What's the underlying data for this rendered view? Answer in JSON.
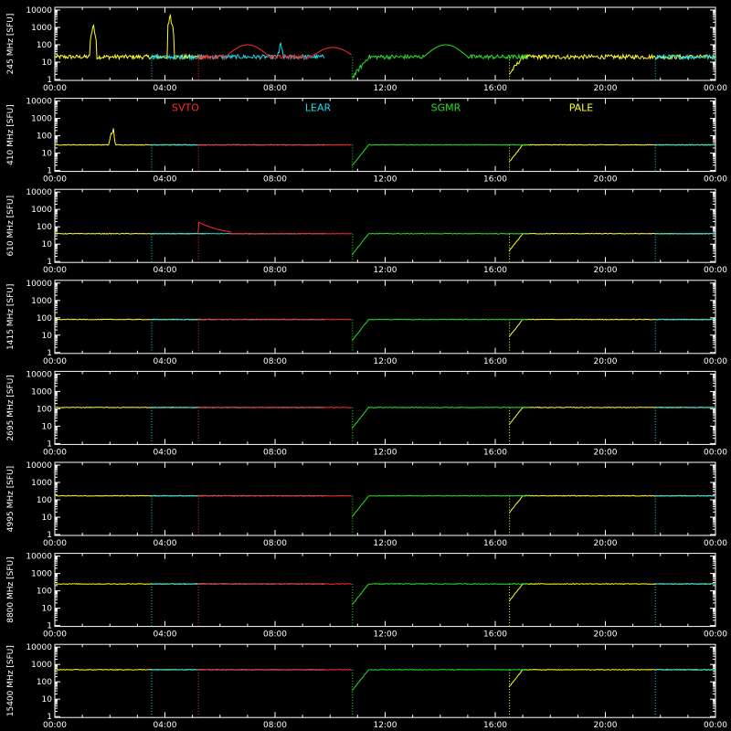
{
  "colors": {
    "background": "#000000",
    "axes": "#ffffff",
    "SVTO": "#ff2a2a",
    "LEAR": "#20d8ea",
    "SGMR": "#28e028",
    "PALE": "#ffff22"
  },
  "chart_data": {
    "type": "line",
    "layout_note": "8 stacked panels sharing the time axis",
    "x_tick_labels": [
      "00:00",
      "04:00",
      "08:00",
      "12:00",
      "16:00",
      "20:00",
      "00:00"
    ],
    "y_tick_labels": [
      "1",
      "10",
      "100",
      "1000",
      "10000"
    ],
    "y_scale": "log",
    "ylim": [
      1,
      10000
    ],
    "x_range_hours": [
      0,
      24
    ],
    "legend": {
      "placement": "top of panel 2",
      "entries": [
        {
          "name": "SVTO",
          "color": "#ff2a2a"
        },
        {
          "name": "LEAR",
          "color": "#20d8ea"
        },
        {
          "name": "SGMR",
          "color": "#28e028"
        },
        {
          "name": "PALE",
          "color": "#ffff22"
        }
      ]
    },
    "station_coverage_hours": {
      "PALE": [
        [
          0,
          5.5
        ],
        [
          16.5,
          24
        ]
      ],
      "LEAR": [
        [
          3.5,
          9.8
        ],
        [
          21.8,
          24
        ]
      ],
      "SVTO": [
        [
          5.2,
          10.8
        ]
      ],
      "SGMR": [
        [
          10.8,
          17.2
        ]
      ]
    },
    "panels": [
      {
        "ylabel": "245 MHz [SFU]",
        "baseline_sfu": 20,
        "events": [
          {
            "station": "PALE",
            "time_h": 1.4,
            "peak_sfu": 2000,
            "shape": "spike"
          },
          {
            "station": "PALE",
            "time_h": 4.2,
            "peak_sfu": 8000,
            "shape": "spike"
          },
          {
            "station": "SVTO",
            "time_h": 7.0,
            "peak_sfu": 100,
            "shape": "arc"
          },
          {
            "station": "SVTO",
            "time_h": 10.1,
            "peak_sfu": 70,
            "shape": "arc"
          },
          {
            "station": "SGMR",
            "time_h": 14.2,
            "peak_sfu": 100,
            "shape": "arc"
          },
          {
            "station": "LEAR",
            "time_h": 8.2,
            "peak_sfu": 200,
            "shape": "spike"
          }
        ]
      },
      {
        "ylabel": "410 MHz [SFU]",
        "baseline_sfu": 30,
        "events": [
          {
            "station": "PALE",
            "time_h": 2.1,
            "peak_sfu": 500,
            "shape": "spike"
          }
        ]
      },
      {
        "ylabel": "610 MHz [SFU]",
        "baseline_sfu": 40,
        "events": [
          {
            "station": "SVTO",
            "time_h": 5.2,
            "peak_sfu": 150,
            "shape": "burst"
          }
        ]
      },
      {
        "ylabel": "1415 MHz [SFU]",
        "baseline_sfu": 80,
        "events": []
      },
      {
        "ylabel": "2695 MHz [SFU]",
        "baseline_sfu": 120,
        "events": []
      },
      {
        "ylabel": "4995 MHz [SFU]",
        "baseline_sfu": 170,
        "events": []
      },
      {
        "ylabel": "8800 MHz [SFU]",
        "baseline_sfu": 250,
        "events": []
      },
      {
        "ylabel": "15400 MHz [SFU]",
        "baseline_sfu": 500,
        "events": []
      }
    ],
    "title": "",
    "xlabel": ""
  }
}
